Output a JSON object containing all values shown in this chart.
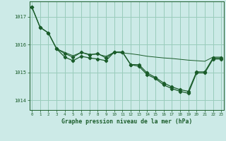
{
  "bg_color": "#cceae7",
  "grid_color": "#99ccbb",
  "line_color": "#1a5c2a",
  "title": "Graphe pression niveau de la mer (hPa)",
  "ylabel_ticks": [
    1014,
    1015,
    1016,
    1017
  ],
  "xlim": [
    -0.3,
    23.3
  ],
  "ylim": [
    1013.65,
    1017.55
  ],
  "xticks": [
    0,
    1,
    2,
    3,
    4,
    5,
    6,
    7,
    8,
    9,
    10,
    11,
    12,
    13,
    14,
    15,
    16,
    17,
    18,
    19,
    20,
    21,
    22,
    23
  ],
  "series1_x": [
    0,
    1,
    2,
    3,
    4,
    5,
    6,
    7,
    8,
    9,
    10,
    11,
    12,
    13,
    14,
    15,
    16,
    17,
    18,
    19,
    20,
    21,
    22,
    23
  ],
  "series1_y": [
    1017.35,
    1016.62,
    1016.42,
    1015.85,
    1015.68,
    1015.55,
    1015.72,
    1015.63,
    1015.68,
    1015.52,
    1015.73,
    1015.73,
    1015.28,
    1015.28,
    1014.98,
    1014.82,
    1014.62,
    1014.48,
    1014.38,
    1014.32,
    1015.02,
    1015.02,
    1015.52,
    1015.52
  ],
  "series2_x": [
    0,
    1,
    2,
    3,
    4,
    5,
    6,
    7,
    8,
    9,
    10,
    11,
    12,
    13,
    14,
    15,
    16,
    17,
    18,
    19,
    20,
    21,
    22,
    23
  ],
  "series2_y": [
    1017.35,
    1016.62,
    1016.42,
    1015.85,
    1015.55,
    1015.42,
    1015.58,
    1015.52,
    1015.48,
    1015.42,
    1015.73,
    1015.73,
    1015.28,
    1015.22,
    1014.92,
    1014.78,
    1014.55,
    1014.42,
    1014.32,
    1014.25,
    1014.98,
    1014.98,
    1015.48,
    1015.48
  ],
  "series3_x": [
    3,
    4,
    5,
    6,
    7,
    8,
    9,
    10,
    11,
    12,
    13,
    14,
    15,
    16,
    17,
    18,
    19,
    20,
    21,
    22,
    23
  ],
  "series3_y": [
    1015.85,
    1015.72,
    1015.6,
    1015.72,
    1015.65,
    1015.65,
    1015.58,
    1015.72,
    1015.7,
    1015.67,
    1015.63,
    1015.58,
    1015.55,
    1015.52,
    1015.5,
    1015.47,
    1015.44,
    1015.42,
    1015.4,
    1015.55,
    1015.55
  ],
  "marker": "D",
  "markersize": 2.2
}
